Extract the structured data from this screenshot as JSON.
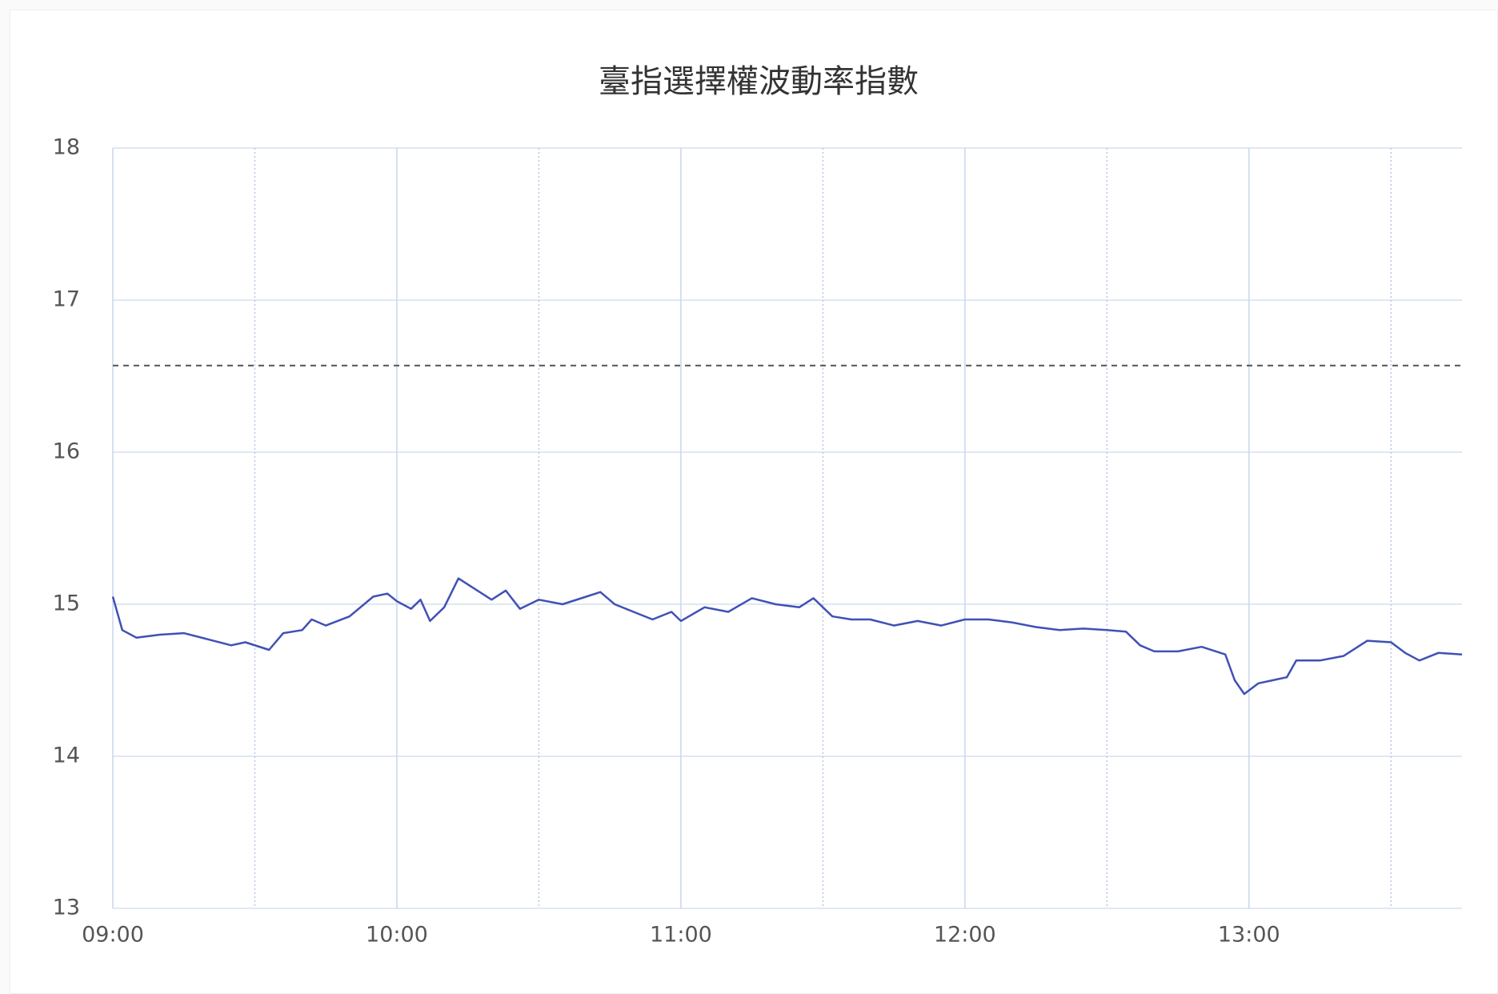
{
  "chart_data": {
    "type": "line",
    "title": "臺指選擇權波動率指數",
    "x": [
      "09:00",
      "09:02",
      "09:05",
      "09:10",
      "09:15",
      "09:20",
      "09:25",
      "09:28",
      "09:33",
      "09:36",
      "09:40",
      "09:42",
      "09:45",
      "09:50",
      "09:55",
      "09:58",
      "10:00",
      "10:03",
      "10:05",
      "10:07",
      "10:10",
      "10:13",
      "10:16",
      "10:20",
      "10:23",
      "10:26",
      "10:30",
      "10:35",
      "10:40",
      "10:43",
      "10:46",
      "10:50",
      "10:54",
      "10:58",
      "11:00",
      "11:05",
      "11:10",
      "11:15",
      "11:20",
      "11:25",
      "11:28",
      "11:32",
      "11:36",
      "11:40",
      "11:45",
      "11:50",
      "11:55",
      "12:00",
      "12:05",
      "12:10",
      "12:15",
      "12:20",
      "12:25",
      "12:30",
      "12:34",
      "12:37",
      "12:40",
      "12:45",
      "12:50",
      "12:55",
      "12:57",
      "12:59",
      "13:02",
      "13:05",
      "13:08",
      "13:10",
      "13:15",
      "13:20",
      "13:25",
      "13:30",
      "13:33",
      "13:36",
      "13:40",
      "13:45"
    ],
    "series": [
      {
        "color": "#3f51b5",
        "values": [
          15.05,
          14.83,
          14.78,
          14.8,
          14.81,
          14.77,
          14.73,
          14.75,
          14.7,
          14.81,
          14.83,
          14.9,
          14.86,
          14.92,
          15.05,
          15.07,
          15.02,
          14.97,
          15.03,
          14.89,
          14.98,
          15.17,
          15.11,
          15.03,
          15.09,
          14.97,
          15.03,
          15.0,
          15.05,
          15.08,
          15.0,
          14.95,
          14.9,
          14.95,
          14.89,
          14.98,
          14.95,
          15.04,
          15.0,
          14.98,
          15.04,
          14.92,
          14.9,
          14.9,
          14.86,
          14.89,
          14.86,
          14.9,
          14.9,
          14.88,
          14.85,
          14.83,
          14.84,
          14.83,
          14.82,
          14.73,
          14.69,
          14.69,
          14.72,
          14.67,
          14.5,
          14.41,
          14.48,
          14.5,
          14.52,
          14.63,
          14.63,
          14.66,
          14.76,
          14.75,
          14.68,
          14.63,
          14.68,
          14.67
        ]
      }
    ],
    "reference_line": 16.57,
    "xlim": [
      "09:00",
      "13:45"
    ],
    "xticks": [
      "09:00",
      "10:00",
      "11:00",
      "12:00",
      "13:00"
    ],
    "xminorticks": [
      "09:30",
      "10:30",
      "11:30",
      "12:30",
      "13:30"
    ],
    "ylim": [
      13,
      18
    ],
    "yticks": [
      13,
      14,
      15,
      16,
      17,
      18
    ],
    "grid": true
  }
}
